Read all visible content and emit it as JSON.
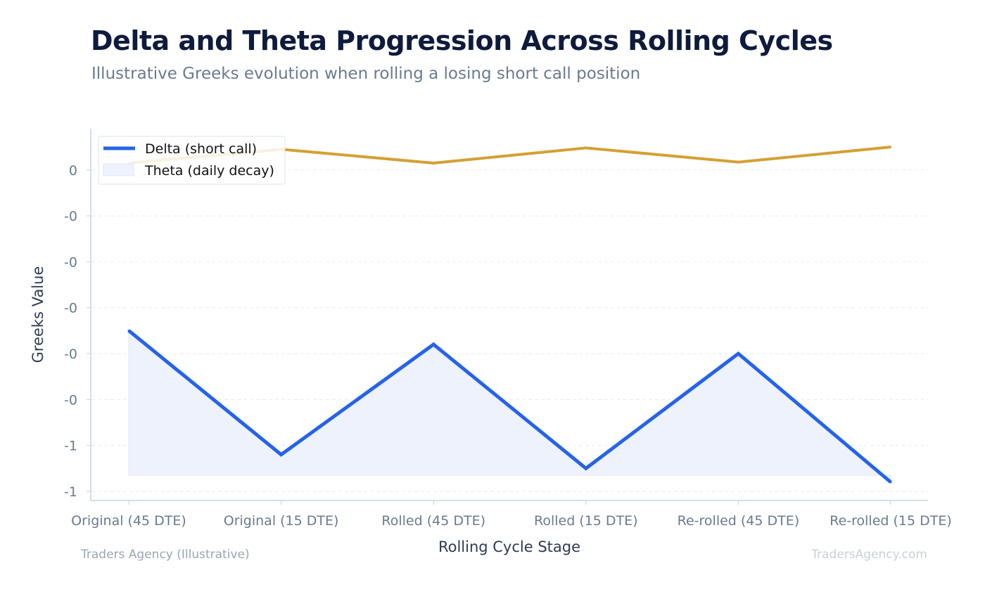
{
  "title": "Delta and Theta Progression Across Rolling Cycles",
  "subtitle": "Illustrative Greeks evolution when rolling a losing short call position",
  "footer": {
    "left": "Traders Agency (Illustrative)",
    "right": "TradersAgency.com"
  },
  "colors": {
    "delta": "#2563eb",
    "delta_fill": "#eef2fc",
    "theta": "#d4a032",
    "axis": "#c5d1e0",
    "grid": "#e6ebf2",
    "tick_text": "#6b7a90",
    "axis_title": "#2f3b52"
  },
  "chart_data": {
    "type": "line",
    "categories": [
      "Original (45 DTE)",
      "Original (15 DTE)",
      "Rolled (45 DTE)",
      "Rolled (15 DTE)",
      "Re-rolled (45 DTE)",
      "Re-rolled (15 DTE)"
    ],
    "series": [
      {
        "name": "Delta (short call)",
        "values": [
          -0.35,
          -0.62,
          -0.38,
          -0.65,
          -0.4,
          -0.68
        ],
        "fill": true
      },
      {
        "name": "Theta (daily decay)",
        "values": [
          0.015,
          0.045,
          0.015,
          0.048,
          0.017,
          0.05
        ],
        "fill": false
      }
    ],
    "fill_baseline": -0.665,
    "yticks": [
      0,
      -0.1,
      -0.2,
      -0.3,
      -0.4,
      -0.5,
      -0.6,
      -0.7
    ],
    "ytick_labels": [
      "0",
      "-0",
      "-0",
      "-0",
      "-0",
      "-0",
      "-1",
      "-1"
    ],
    "ylim": [
      -0.72,
      0.09
    ],
    "xlabel": "Rolling Cycle Stage",
    "ylabel": "Greeks Value",
    "grid": "horizontal-dashed",
    "legend": "top-left",
    "legend_entries": [
      "Delta (short call)",
      "Theta (daily decay)"
    ]
  }
}
